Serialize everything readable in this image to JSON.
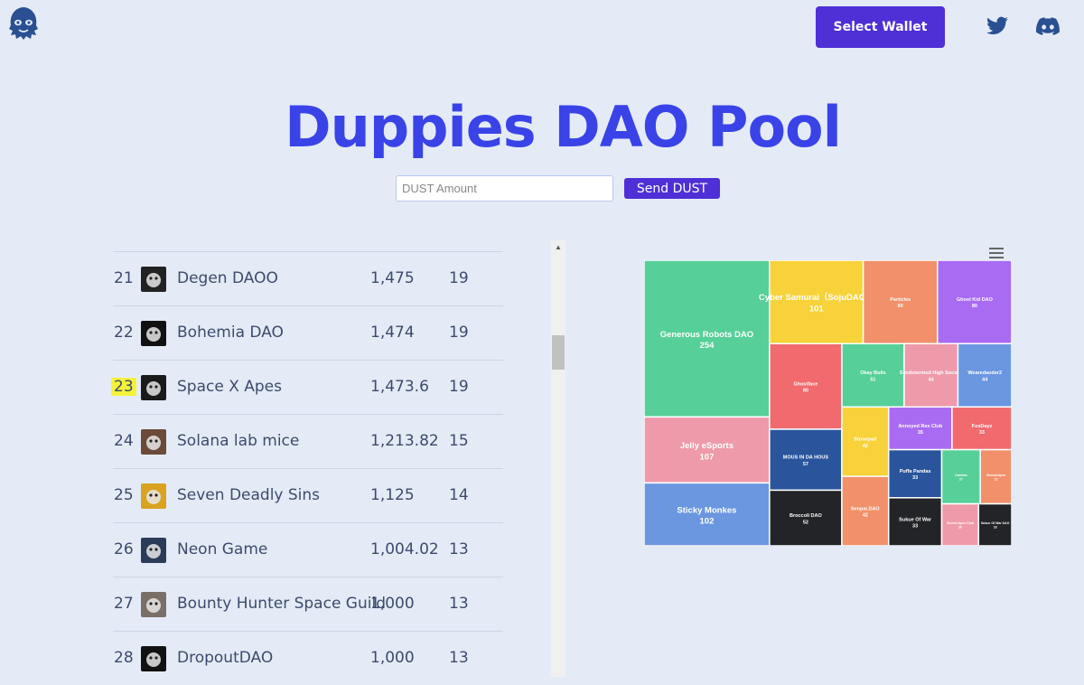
{
  "header": {
    "logo_icon": "ghost-logo-icon",
    "wallet_label": "Select Wallet",
    "twitter_icon": "twitter-icon",
    "discord_icon": "discord-icon",
    "accent_color": "#4f2fd6"
  },
  "page": {
    "title": "Duppies DAO Pool",
    "title_color": "#3a43e8"
  },
  "dust": {
    "placeholder": "DUST Amount",
    "send_label": "Send DUST"
  },
  "leaderboard": {
    "rows": [
      {
        "rank": "21",
        "name": "Degen DAOO",
        "amount": "1,475",
        "count": "19",
        "avatar": "degen-daoo-avatar"
      },
      {
        "rank": "22",
        "name": "Bohemia DAO",
        "amount": "1,474",
        "count": "19",
        "avatar": "bohemia-dao-avatar"
      },
      {
        "rank": "23",
        "name": "Space X Apes",
        "amount": "1,473.6",
        "count": "19",
        "avatar": "space-x-apes-avatar",
        "highlight": true
      },
      {
        "rank": "24",
        "name": "Solana lab mice",
        "amount": "1,213.82",
        "count": "15",
        "avatar": "solana-lab-mice-avatar"
      },
      {
        "rank": "25",
        "name": "Seven Deadly Sins",
        "amount": "1,125",
        "count": "14",
        "avatar": "seven-deadly-sins-avatar"
      },
      {
        "rank": "26",
        "name": "Neon Game",
        "amount": "1,004.02",
        "count": "13",
        "avatar": "neon-game-avatar"
      },
      {
        "rank": "27",
        "name": "Bounty Hunter Space Guild",
        "amount": "1,000",
        "count": "13",
        "avatar": "bounty-hunter-avatar"
      },
      {
        "rank": "28",
        "name": "DropoutDAO",
        "amount": "1,000",
        "count": "13",
        "avatar": "dropoutdao-avatar"
      }
    ]
  },
  "chart_data": {
    "type": "treemap",
    "menu_icon": "hamburger-menu-icon",
    "nodes": [
      {
        "name": "Generous Robots DAO",
        "value": 254,
        "color": "#57cf99"
      },
      {
        "name": "Cyber Samurai（SojuDAO）",
        "value": 101,
        "color": "#f8d23a"
      },
      {
        "name": "Particles",
        "value": 80,
        "color": "#f1906a"
      },
      {
        "name": "Ghost Kid DAO",
        "value": 80,
        "color": "#a96bf2"
      },
      {
        "name": "Ghostface",
        "value": 80,
        "color": "#f06a6e"
      },
      {
        "name": "Okay Bulls",
        "value": 51,
        "color": "#57cf99"
      },
      {
        "name": "Sandstormed High Society",
        "value": 44,
        "color": "#ee9aab"
      },
      {
        "name": "Wearedaoder2",
        "value": 44,
        "color": "#6b96e0"
      },
      {
        "name": "Jelly eSports",
        "value": 107,
        "color": "#ee9aab"
      },
      {
        "name": "MOUS IN DA HOUS",
        "value": 57,
        "color": "#2a559c"
      },
      {
        "name": "Sticky Monkes",
        "value": 102,
        "color": "#6b96e0"
      },
      {
        "name": "Broccoli DAO",
        "value": 52,
        "color": "#222427"
      },
      {
        "name": "Stonepad",
        "value": 42,
        "color": "#f8d23a"
      },
      {
        "name": "FoxDayz",
        "value": 33,
        "color": "#f06a6e"
      },
      {
        "name": "Puffa Pandas",
        "value": 33,
        "color": "#2a559c"
      },
      {
        "name": "Sukue Of War",
        "value": 33,
        "color": "#222427"
      },
      {
        "name": "Senpai.DAO",
        "value": 42,
        "color": "#f1906a"
      },
      {
        "name": "Annoyed Rex Club",
        "value": 35,
        "color": "#a96bf2"
      },
      {
        "name": "Cwebba",
        "value": 27,
        "color": "#57cf99"
      },
      {
        "name": "Stoned Apes",
        "value": 22,
        "color": "#f1906a"
      },
      {
        "name": "Stoned Apes Club",
        "value": 20,
        "color": "#ee9aab"
      },
      {
        "name": "Sukue Of War DAO",
        "value": 18,
        "color": "#222427"
      }
    ]
  }
}
